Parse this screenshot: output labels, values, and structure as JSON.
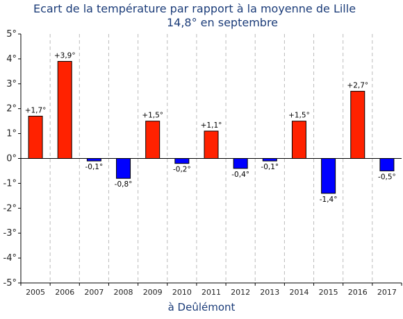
{
  "chart_data": {
    "type": "bar",
    "title": "Ecart de la température par rapport à la moyenne de Lille",
    "subtitle": "14,8° en septembre",
    "xlabel": "à Deûlémont",
    "ylabel": "",
    "categories": [
      "2005",
      "2006",
      "2007",
      "2008",
      "2009",
      "2010",
      "2011",
      "2012",
      "2013",
      "2014",
      "2015",
      "2016",
      "2017"
    ],
    "values": [
      1.7,
      3.9,
      -0.1,
      -0.8,
      1.5,
      -0.2,
      1.1,
      -0.4,
      -0.1,
      1.5,
      -1.4,
      2.7,
      -0.5
    ],
    "data_labels": [
      "+1,7°",
      "+3,9°",
      "-0,1°",
      "-0,8°",
      "+1,5°",
      "-0,2°",
      "+1,1°",
      "-0,4°",
      "-0,1°",
      "+1,5°",
      "-1,4°",
      "+2,7°",
      "-0,5°"
    ],
    "ylim": [
      -5,
      5
    ],
    "yticks": [
      5,
      4,
      3,
      2,
      1,
      0,
      -1,
      -2,
      -3,
      -4,
      -5
    ],
    "ytick_labels": [
      "5°",
      "4°",
      "3°",
      "2°",
      "1°",
      "0°",
      "-1°",
      "-2°",
      "-3°",
      "-4°",
      "-5°"
    ],
    "colors": {
      "positive": "#ff2200",
      "negative": "#0000ff"
    },
    "grid": true
  }
}
